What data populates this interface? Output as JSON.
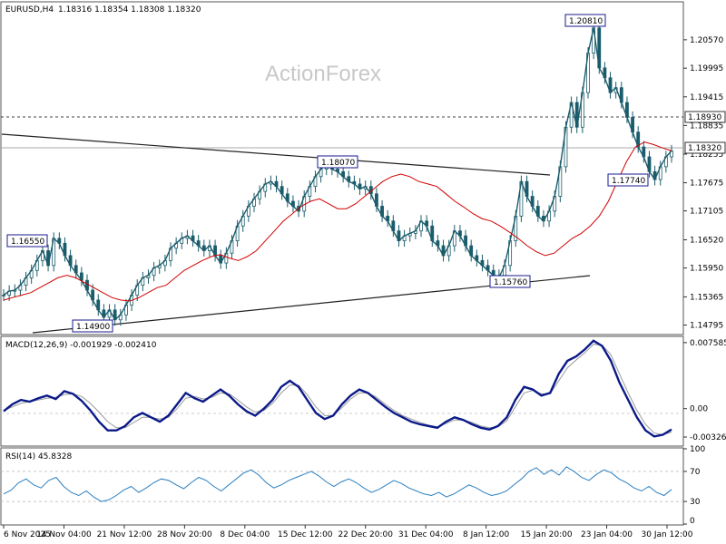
{
  "chart_data": {
    "type": "line",
    "header": {
      "symbol_tf": "EURUSD,H4",
      "ohlc": "1.18316 1.18354 1.18308 1.18320"
    },
    "watermark": "ActionForex",
    "x_labels": [
      "6 Nov 2025",
      "14 Nov 04:00",
      "21 Nov 12:00",
      "28 Nov 20:00",
      "8 Dec 04:00",
      "15 Dec 12:00",
      "22 Dec 20:00",
      "31 Dec 04:00",
      "8 Jan 12:00",
      "15 Jan 20:00",
      "23 Jan 04:00",
      "30 Jan 12:00"
    ],
    "price": {
      "y_ticks": [
        "1.20570",
        "1.19995",
        "1.19415",
        "1.18835",
        "1.18255",
        "1.17675",
        "1.17105",
        "1.16520",
        "1.15950",
        "1.15365",
        "1.14795"
      ],
      "ylim": [
        1.1462,
        1.2132
      ],
      "level_line": "1.18930",
      "current_price": "1.18320",
      "annotations": [
        "1.20810",
        "1.18070",
        "1.16550",
        "1.14900",
        "1.15760",
        "1.17740"
      ],
      "close_series": [
        1.154,
        1.1548,
        1.155,
        1.156,
        1.1575,
        1.159,
        1.161,
        1.163,
        1.16,
        1.1655,
        1.1645,
        1.162,
        1.16,
        1.1585,
        1.157,
        1.155,
        1.153,
        1.151,
        1.1495,
        1.151,
        1.149,
        1.15,
        1.152,
        1.154,
        1.156,
        1.1575,
        1.158,
        1.1595,
        1.16,
        1.161,
        1.1635,
        1.1645,
        1.1655,
        1.166,
        1.165,
        1.164,
        1.163,
        1.164,
        1.162,
        1.1605,
        1.1625,
        1.165,
        1.168,
        1.17,
        1.172,
        1.1735,
        1.175,
        1.1765,
        1.177,
        1.176,
        1.1745,
        1.173,
        1.172,
        1.171,
        1.174,
        1.176,
        1.178,
        1.1795,
        1.1807,
        1.1795,
        1.179,
        1.178,
        1.177,
        1.1765,
        1.1755,
        1.176,
        1.1745,
        1.172,
        1.17,
        1.169,
        1.167,
        1.165,
        1.166,
        1.1665,
        1.167,
        1.169,
        1.168,
        1.165,
        1.164,
        1.162,
        1.164,
        1.167,
        1.166,
        1.164,
        1.162,
        1.161,
        1.16,
        1.159,
        1.158,
        1.1576,
        1.16,
        1.165,
        1.17,
        1.177,
        1.174,
        1.172,
        1.17,
        1.169,
        1.171,
        1.174,
        1.18,
        1.188,
        1.193,
        1.188,
        1.195,
        1.203,
        1.2081,
        1.2,
        1.198,
        1.195,
        1.196,
        1.193,
        1.19,
        1.187,
        1.184,
        1.182,
        1.179,
        1.1774,
        1.18,
        1.182,
        1.1832
      ],
      "ma_series": [
        1.153,
        1.1535,
        1.154,
        1.1545,
        1.1555,
        1.1565,
        1.1575,
        1.158,
        1.1575,
        1.1565,
        1.1555,
        1.1545,
        1.1535,
        1.153,
        1.1528,
        1.1535,
        1.1545,
        1.1555,
        1.156,
        1.1575,
        1.159,
        1.16,
        1.161,
        1.1618,
        1.1622,
        1.1615,
        1.161,
        1.1618,
        1.163,
        1.165,
        1.167,
        1.169,
        1.1705,
        1.172,
        1.173,
        1.1735,
        1.1725,
        1.1715,
        1.1715,
        1.1725,
        1.174,
        1.1755,
        1.177,
        1.178,
        1.1785,
        1.178,
        1.177,
        1.1765,
        1.176,
        1.1745,
        1.173,
        1.1718,
        1.1705,
        1.1695,
        1.169,
        1.168,
        1.1668,
        1.1655,
        1.164,
        1.1628,
        1.162,
        1.1625,
        1.164,
        1.1655,
        1.1665,
        1.168,
        1.17,
        1.173,
        1.177,
        1.181,
        1.184,
        1.185,
        1.1845,
        1.1838,
        1.1832
      ]
    },
    "macd": {
      "label": "MACD(12,26,9) -0.001929 -0.002410",
      "y_ticks": [
        "0.007585",
        "0.00",
        "-0.003264"
      ],
      "ylim": [
        -0.0042,
        0.0082
      ],
      "series": [
        -0.0003,
        0.0005,
        0.001,
        0.0008,
        0.0012,
        0.0015,
        0.0011,
        0.002,
        0.0017,
        0.0009,
        -0.0002,
        -0.0015,
        -0.0025,
        -0.0025,
        -0.002,
        -0.001,
        -0.0005,
        -0.001,
        -0.0015,
        -0.0008,
        0.0005,
        0.0018,
        0.0012,
        0.0008,
        0.0015,
        0.0022,
        0.0015,
        0.0005,
        -0.0003,
        -0.0008,
        0.0,
        0.001,
        0.0025,
        0.0032,
        0.0025,
        0.001,
        -0.0005,
        -0.0012,
        -0.0008,
        0.0005,
        0.0015,
        0.0022,
        0.0018,
        0.001,
        0.0002,
        -0.0005,
        -0.001,
        -0.0015,
        -0.0018,
        -0.002,
        -0.0022,
        -0.0015,
        -0.001,
        -0.0013,
        -0.0018,
        -0.0022,
        -0.0024,
        -0.002,
        -0.001,
        0.001,
        0.0025,
        0.0022,
        0.0015,
        0.0018,
        0.004,
        0.0055,
        0.006,
        0.0068,
        0.0078,
        0.0072,
        0.0055,
        0.003,
        0.001,
        -0.001,
        -0.0025,
        -0.0032,
        -0.003,
        -0.0024
      ],
      "signal": [
        -0.0002,
        0.0002,
        0.0006,
        0.0008,
        0.001,
        0.0012,
        0.0013,
        0.0016,
        0.0017,
        0.0014,
        0.0006,
        -0.0004,
        -0.0015,
        -0.0022,
        -0.0022,
        -0.0016,
        -0.001,
        -0.001,
        -0.0012,
        -0.001,
        0.0,
        0.0012,
        0.0014,
        0.0011,
        0.0013,
        0.0018,
        0.0017,
        0.001,
        0.0002,
        -0.0004,
        -0.0002,
        0.0006,
        0.0018,
        0.0027,
        0.0027,
        0.0016,
        0.0002,
        -0.0008,
        -0.0008,
        0.0001,
        0.0011,
        0.0018,
        0.0018,
        0.0013,
        0.0005,
        -0.0002,
        -0.0008,
        -0.0012,
        -0.0016,
        -0.0019,
        -0.0021,
        -0.0017,
        -0.0013,
        -0.0013,
        -0.0016,
        -0.002,
        -0.0022,
        -0.0021,
        -0.0014,
        0.0002,
        0.0018,
        0.0021,
        0.0017,
        0.0017,
        0.0032,
        0.0047,
        0.0056,
        0.0064,
        0.0074,
        0.0073,
        0.0062,
        0.004,
        0.0018,
        -0.0002,
        -0.0018,
        -0.0028,
        -0.003,
        -0.0027
      ]
    },
    "rsi": {
      "label": "RSI(14) 45.8328",
      "y_ticks": [
        "100",
        "70",
        "30",
        "0"
      ],
      "ylim": [
        0,
        100
      ],
      "levels": [
        70,
        30
      ],
      "series": [
        40,
        45,
        55,
        60,
        52,
        48,
        58,
        62,
        50,
        42,
        38,
        44,
        36,
        30,
        32,
        38,
        45,
        50,
        42,
        48,
        55,
        60,
        58,
        52,
        47,
        55,
        62,
        58,
        50,
        44,
        52,
        60,
        68,
        72,
        65,
        55,
        48,
        52,
        58,
        62,
        66,
        70,
        64,
        56,
        50,
        56,
        60,
        55,
        48,
        42,
        46,
        52,
        58,
        54,
        48,
        44,
        40,
        38,
        42,
        36,
        40,
        46,
        52,
        48,
        42,
        38,
        40,
        44,
        52,
        60,
        70,
        75,
        66,
        72,
        65,
        76,
        70,
        62,
        58,
        66,
        72,
        68,
        60,
        55,
        48,
        44,
        50,
        42,
        38,
        46
      ]
    }
  }
}
